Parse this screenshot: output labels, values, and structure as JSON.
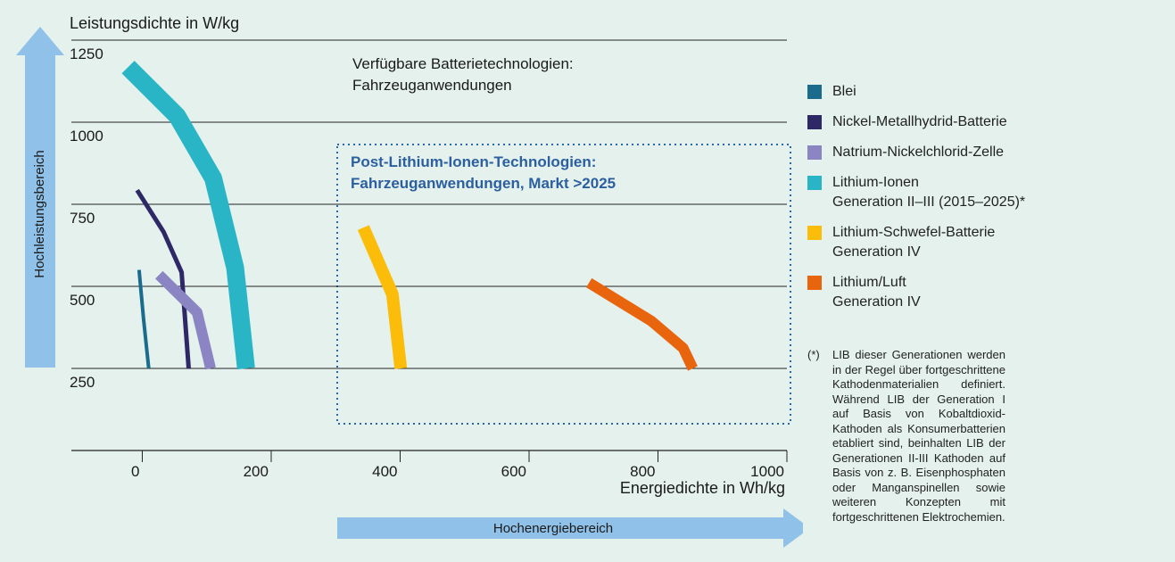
{
  "chart_data": {
    "type": "line",
    "ylabel": "Leistungsdichte in W/kg",
    "xlabel": "Energiedichte in Wh/kg",
    "annotation": [
      "Verfügbare Batterietechnologien:",
      "Fahrzeuganwendungen"
    ],
    "region_label": [
      "Post-Lithium-Ionen-Technologien:",
      "Fahrzeuganwendungen, Markt >2025"
    ],
    "y_arrow_label": "Hochleistungsbereich",
    "x_arrow_label": "Hochenergiebereich",
    "xlim": [
      -110,
      1000
    ],
    "xticks": [
      0,
      200,
      400,
      600,
      800,
      1000
    ],
    "ylim": [
      0,
      1250
    ],
    "yticks": [
      250,
      500,
      750,
      1000,
      1250
    ],
    "grid": true,
    "series": [
      {
        "name": "Blei",
        "color": "#1b6c8c",
        "x": [
          -5,
          2,
          10
        ],
        "values": [
          550,
          400,
          250
        ]
      },
      {
        "name": "Nickel-Metallhydrid-Batterie",
        "color": "#2e2866",
        "x": [
          -8,
          33,
          61,
          72
        ],
        "values": [
          793,
          666,
          543,
          250
        ]
      },
      {
        "name": "Natrium-Nickelchlorid-Zelle",
        "color": "#8b85c3",
        "x": [
          26,
          85,
          106
        ],
        "values": [
          535,
          421,
          250
        ]
      },
      {
        "name": "Lithium-Ionen\nGeneration II–III (2015–2025)*",
        "color": "#2ab5c7",
        "x": [
          -22,
          54,
          110,
          144,
          161
        ],
        "values": [
          1168,
          1019,
          829,
          557,
          250
        ]
      },
      {
        "name": "Lithium-Schwefel-Batterie\nGeneration IV",
        "color": "#fbbd0a",
        "x": [
          343,
          388,
          401
        ],
        "values": [
          679,
          476,
          250
        ]
      },
      {
        "name": "Lithium/Luft\nGeneration IV",
        "color": "#e8650e",
        "x": [
          693,
          790,
          839,
          854
        ],
        "values": [
          511,
          394,
          312,
          250
        ]
      }
    ],
    "footnote": {
      "marker": "(*)",
      "text": "LIB dieser Generationen werden in der Regel über fortgeschrittene Kathodenmaterialien definiert. Während LIB der Generation I auf Basis von Kobaltdioxid-Kathoden als Konsumerbatterien etabliert sind, beinhalten LIB der Generationen II-III Kathoden auf Basis von z. B. Eisenphosphaten oder Manganspinellen sowie weiteren Konzepten mit fortgeschrittenen Elektrochemien."
    }
  }
}
